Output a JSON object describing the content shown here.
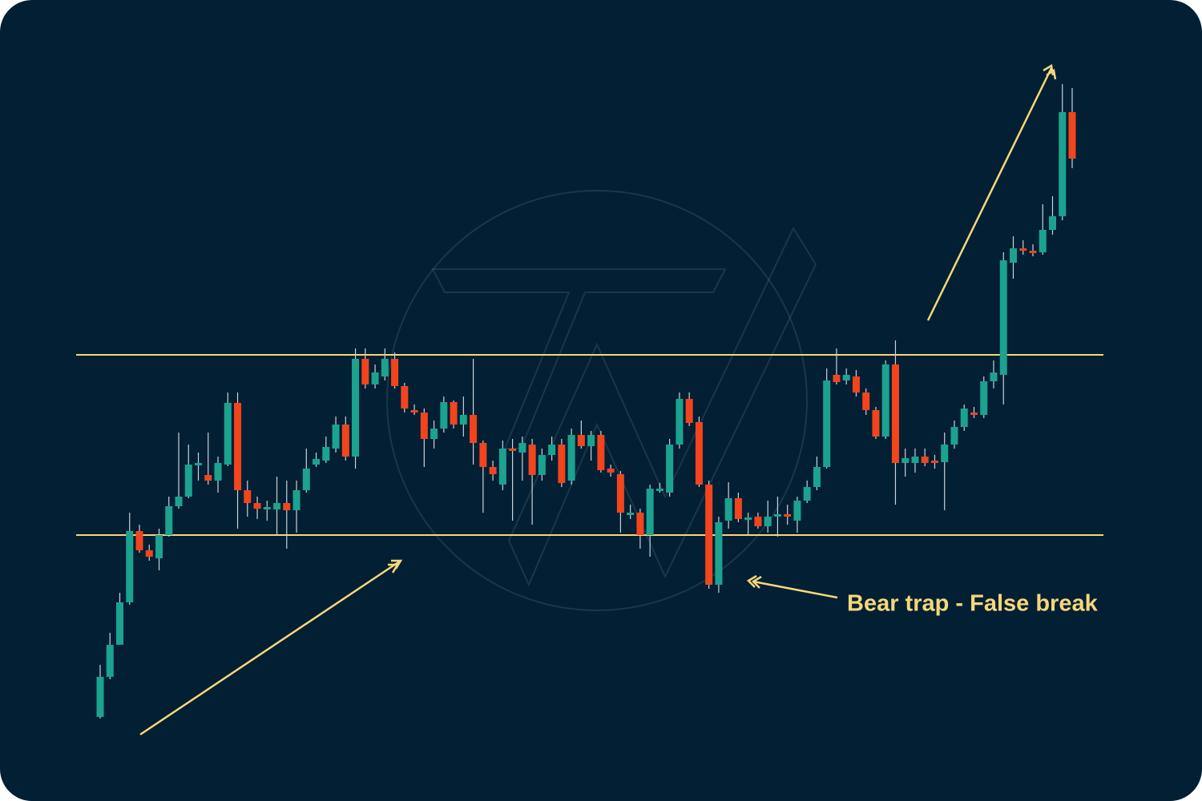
{
  "chart_data": {
    "type": "candlestick",
    "annotation": "Bear trap - False break",
    "ylim": [
      0,
      100
    ],
    "hlines": [
      55.7,
      33.2
    ],
    "up_color": "#1ba38f",
    "down_color": "#f2441d",
    "line_color": "#f5d77a",
    "open": [
      10.5,
      15.5,
      19.5,
      24.8,
      33.7,
      31.3,
      30.3,
      33.2,
      36.8,
      38,
      42,
      40.7,
      40,
      42,
      49.7,
      38.8,
      37.2,
      36.5,
      36.4,
      37.2,
      36.3,
      38.8,
      42,
      42.5,
      44,
      47,
      43,
      55.2,
      52,
      53,
      55.2,
      51.8,
      48.8,
      48.5,
      45.2,
      46.5,
      49.8,
      47,
      48.2,
      44.7,
      41.7,
      39.5,
      44,
      43.5,
      44.5,
      40.7,
      43.2,
      44.5,
      40,
      45.7,
      44.3,
      45.7,
      41.5,
      40.8,
      35.8,
      36,
      33.2,
      39,
      38.5,
      44.5,
      50.2,
      47.3,
      39.5,
      27,
      35,
      37.8,
      35.2,
      35.5,
      34.3,
      35.5,
      35.8,
      35,
      37.5,
      39.2,
      41.7,
      53.2,
      52.5,
      53,
      51,
      48.8,
      45.5,
      54.5,
      42.2,
      42.2,
      43,
      42.5,
      42.3,
      44.5,
      46.7,
      48.5,
      48.2,
      52.4,
      53.2,
      67.2,
      69,
      68.7,
      68.5,
      71.3,
      73,
      86
    ],
    "high": [
      17,
      21,
      26,
      36,
      34.5,
      32,
      34,
      38,
      46,
      44.5,
      43.5,
      46,
      43,
      51,
      51,
      40,
      38,
      37.5,
      40.5,
      40,
      40,
      44,
      43.5,
      45.5,
      48,
      48,
      56.5,
      56.5,
      54.5,
      56.5,
      56,
      52.2,
      49.5,
      49,
      47.5,
      50.5,
      50,
      50.5,
      55.2,
      45,
      42.5,
      45,
      45.2,
      45.5,
      45.2,
      44,
      45.5,
      45.2,
      46.5,
      47.5,
      46.2,
      46.2,
      42,
      41.2,
      37,
      36.5,
      39.5,
      39.7,
      45.2,
      51,
      51,
      48,
      40,
      35.5,
      39.8,
      38.5,
      36,
      36,
      37.5,
      38,
      37,
      38,
      40,
      43,
      54,
      56.5,
      54,
      53.8,
      51.5,
      49.2,
      55,
      57.5,
      44,
      44,
      44,
      43.2,
      46,
      47.5,
      49.5,
      49.2,
      53,
      55,
      68.5,
      70.5,
      70,
      69.5,
      74.5,
      75.5,
      89.5,
      89
    ],
    "low": [
      10.3,
      15.2,
      19.5,
      24.5,
      31,
      30,
      28.8,
      33,
      36.5,
      37.8,
      40,
      39.5,
      38.5,
      41.8,
      34,
      35.5,
      35.2,
      35,
      33.2,
      31.5,
      33.5,
      38.5,
      41.7,
      42.2,
      43.5,
      42.5,
      41.5,
      51.5,
      51.5,
      52.5,
      51.5,
      48.5,
      48.2,
      41.7,
      44,
      46,
      46.5,
      45.5,
      42,
      36,
      40,
      38.8,
      35,
      40,
      34.5,
      40,
      42.5,
      39.2,
      39.5,
      44,
      42.5,
      41,
      40.5,
      33.5,
      35.2,
      31.5,
      30.5,
      38.5,
      38,
      44,
      46.8,
      39.2,
      26.5,
      26,
      34,
      34.8,
      33.2,
      34,
      33.5,
      33,
      34.5,
      33.5,
      37.2,
      38.8,
      41.5,
      52,
      52,
      50.5,
      48.2,
      45.2,
      45.2,
      37,
      40.5,
      41,
      41.8,
      41.5,
      36.3,
      44,
      46.2,
      47.8,
      47.8,
      51.5,
      49.5,
      65.2,
      68.2,
      68,
      68.2,
      70.7,
      72.5,
      79
    ],
    "close": [
      15.5,
      19.5,
      24.8,
      33.7,
      31.3,
      30.5,
      33.2,
      36.8,
      38,
      42,
      42.2,
      40,
      42.2,
      49.7,
      38.8,
      37.2,
      36.5,
      36.7,
      37.2,
      36.3,
      38.8,
      41.5,
      42.7,
      44.2,
      47,
      43,
      55.2,
      52,
      53.5,
      55.2,
      51.8,
      49,
      48.6,
      45.2,
      46.5,
      49.8,
      47,
      48.2,
      44.7,
      41.7,
      40.8,
      44,
      43.7,
      44.7,
      40.7,
      43.2,
      44.5,
      39.7,
      45.7,
      44.3,
      45.7,
      41.3,
      41,
      36,
      36,
      33.2,
      39,
      39,
      44.5,
      50.2,
      47.2,
      39.5,
      27,
      34.8,
      37.8,
      35.2,
      35.4,
      34.3,
      35.5,
      35.8,
      35.5,
      37.5,
      39.2,
      41.7,
      52.5,
      52.3,
      53.2,
      51,
      48.8,
      45.5,
      54.5,
      42.2,
      42.8,
      43,
      42.2,
      42.2,
      44.5,
      46.7,
      49,
      48.2,
      52.4,
      53.5,
      67.5,
      69,
      68.7,
      68.5,
      71.3,
      73,
      86,
      80.2
    ]
  }
}
